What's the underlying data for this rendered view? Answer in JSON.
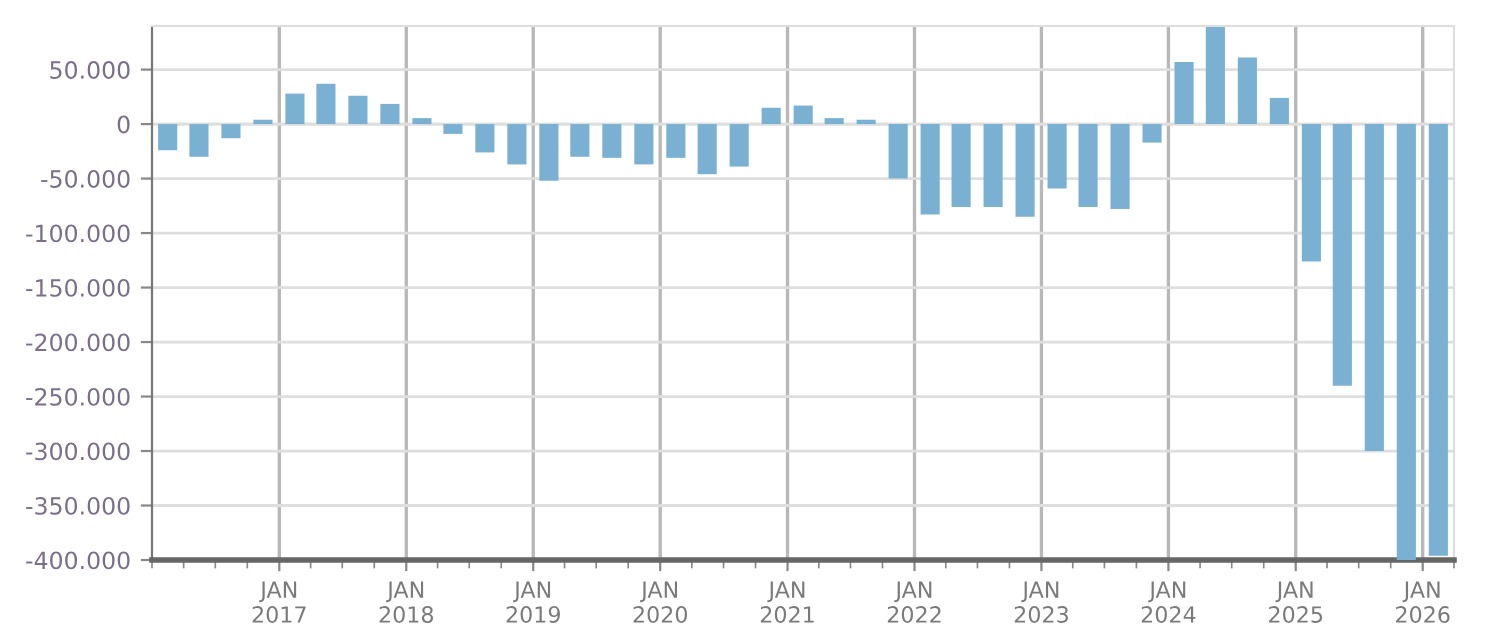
{
  "chart_data": {
    "type": "bar",
    "x": [
      "2016-02-15",
      "2016-05-15",
      "2016-08-15",
      "2016-11-15",
      "2017-02-15",
      "2017-05-15",
      "2017-08-15",
      "2017-11-15",
      "2018-02-15",
      "2018-05-15",
      "2018-08-15",
      "2018-11-15",
      "2019-02-15",
      "2019-05-15",
      "2019-08-15",
      "2019-11-15",
      "2020-02-15",
      "2020-05-15",
      "2020-08-15",
      "2020-11-15",
      "2021-02-15",
      "2021-05-15",
      "2021-08-15",
      "2021-11-15",
      "2022-02-15",
      "2022-05-15",
      "2022-08-15",
      "2022-11-15",
      "2023-02-15",
      "2023-05-15",
      "2023-08-15",
      "2023-11-15",
      "2024-02-15",
      "2024-05-15",
      "2024-08-15",
      "2024-11-15",
      "2025-02-15",
      "2025-05-15",
      "2025-08-15",
      "2025-11-15",
      "2026-02-15"
    ],
    "values": [
      -24000,
      -30000,
      -13000,
      4000,
      28000,
      37000,
      26000,
      18500,
      5500,
      -9000,
      -26000,
      -37000,
      -52000,
      -30000,
      -31000,
      -37000,
      -31000,
      -46000,
      -39000,
      15000,
      17000,
      5500,
      4000,
      -50000,
      -83000,
      -76000,
      -76000,
      -85000,
      -59000,
      -76000,
      -78000,
      -17000,
      57000,
      89000,
      61000,
      24000,
      -126000,
      -240000,
      -300000,
      -400000,
      -396000
    ],
    "color": "#7ab1d3",
    "xlim": [
      "2016-01-01",
      "2026-04-01"
    ],
    "xticks": [
      {
        "value": "2017-01-01",
        "label": "JAN\n2017"
      },
      {
        "value": "2018-01-01",
        "label": "JAN\n2018"
      },
      {
        "value": "2019-01-01",
        "label": "JAN\n2019"
      },
      {
        "value": "2020-01-01",
        "label": "JAN\n2020"
      },
      {
        "value": "2021-01-01",
        "label": "JAN\n2021"
      },
      {
        "value": "2022-01-01",
        "label": "JAN\n2022"
      },
      {
        "value": "2023-01-01",
        "label": "JAN\n2023"
      },
      {
        "value": "2024-01-01",
        "label": "JAN\n2024"
      },
      {
        "value": "2025-01-01",
        "label": "JAN\n2025"
      },
      {
        "value": "2026-01-01",
        "label": "JAN\n2026"
      }
    ],
    "ylim": [
      -400000,
      90000
    ],
    "yticks": [
      {
        "value": 50000,
        "label": "50.000"
      },
      0,
      {
        "value": -50000,
        "label": "-50.000"
      },
      {
        "value": -100000,
        "label": "-100.000"
      },
      {
        "value": -150000,
        "label": "-150.000"
      },
      {
        "value": -200000,
        "label": "-200.000"
      },
      {
        "value": -250000,
        "label": "-250.000"
      },
      {
        "value": -300000,
        "label": "-300.000"
      },
      {
        "value": -350000,
        "label": "-350.000"
      },
      {
        "value": -400000,
        "label": "-400.000"
      }
    ],
    "grid": true
  }
}
